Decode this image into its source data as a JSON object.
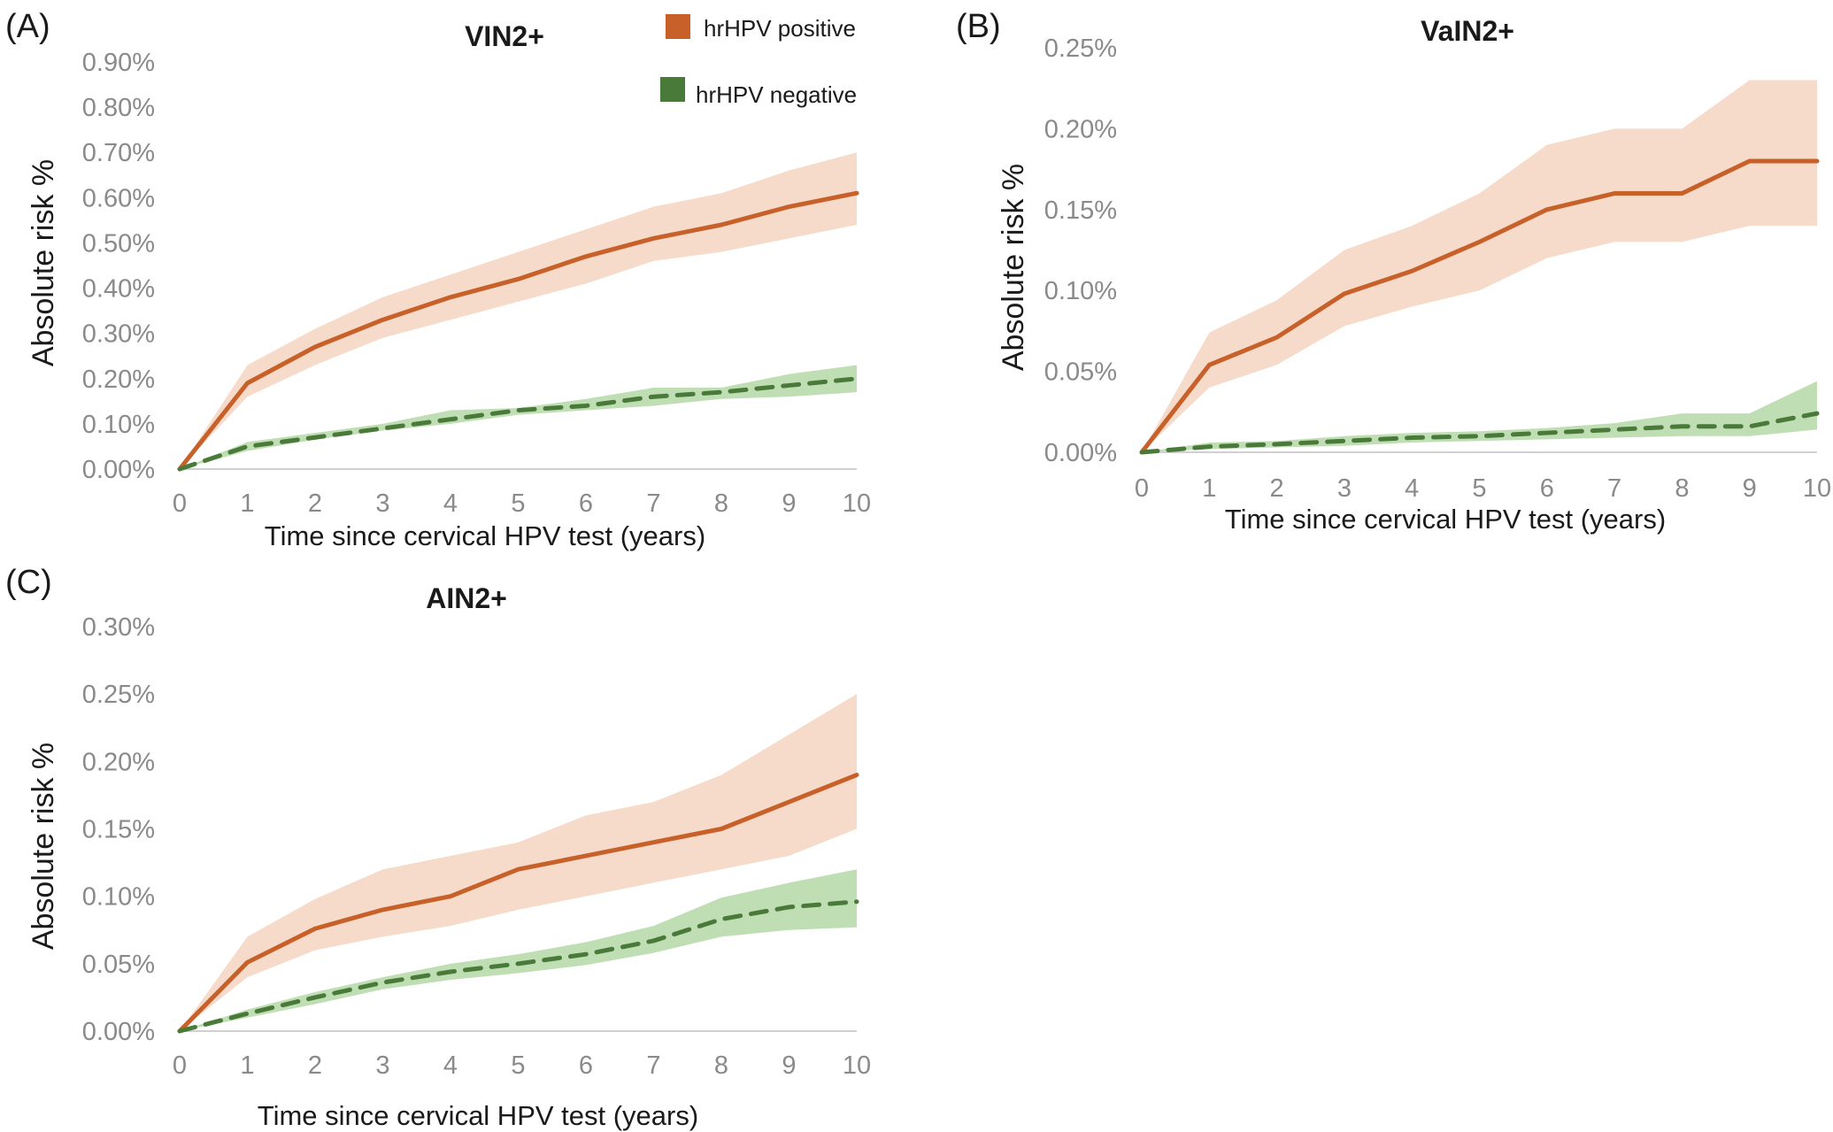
{
  "legend": {
    "items": [
      {
        "label": "hrHPV positive",
        "color": "#C8602A"
      },
      {
        "label": "hrHPV  negative",
        "color": "#4A7A3A"
      }
    ]
  },
  "colors": {
    "positive_line": "#C8602A",
    "positive_band": "#F5D5C2",
    "negative_line": "#4A7A3A",
    "negative_band": "#B5D8A6",
    "tick_text": "#8a8a8a"
  },
  "chart_data": [
    {
      "panel_label": "(A)",
      "type": "line",
      "title": "VIN2+",
      "xlabel": "Time since cervical HPV test (years)",
      "ylabel": "Absolute risk %",
      "x": [
        0,
        1,
        2,
        3,
        4,
        5,
        6,
        7,
        8,
        9,
        10
      ],
      "xlim": [
        0,
        10
      ],
      "ylim": [
        0,
        0.9
      ],
      "yticks": [
        0,
        0.1,
        0.2,
        0.3,
        0.4,
        0.5,
        0.6,
        0.7,
        0.8,
        0.9
      ],
      "ytick_labels": [
        "0.00%",
        "0.10%",
        "0.20%",
        "0.30%",
        "0.40%",
        "0.50%",
        "0.60%",
        "0.70%",
        "0.80%",
        "0.90%"
      ],
      "xtick_labels": [
        "0",
        "1",
        "2",
        "3",
        "4",
        "5",
        "6",
        "7",
        "8",
        "9",
        "10"
      ],
      "legend_position": "top-right",
      "series": [
        {
          "name": "hrHPV positive",
          "style": "solid",
          "values": [
            0,
            0.19,
            0.27,
            0.33,
            0.38,
            0.42,
            0.47,
            0.51,
            0.54,
            0.58,
            0.61
          ],
          "lower": [
            0,
            0.16,
            0.23,
            0.29,
            0.33,
            0.37,
            0.41,
            0.46,
            0.48,
            0.51,
            0.54
          ],
          "upper": [
            0,
            0.23,
            0.31,
            0.38,
            0.43,
            0.48,
            0.53,
            0.58,
            0.61,
            0.66,
            0.7
          ]
        },
        {
          "name": "hrHPV  negative",
          "style": "dashed",
          "values": [
            0,
            0.05,
            0.07,
            0.09,
            0.11,
            0.13,
            0.14,
            0.16,
            0.17,
            0.185,
            0.2
          ],
          "lower": [
            0,
            0.04,
            0.065,
            0.085,
            0.1,
            0.12,
            0.13,
            0.14,
            0.155,
            0.16,
            0.17
          ],
          "upper": [
            0,
            0.06,
            0.08,
            0.1,
            0.13,
            0.135,
            0.155,
            0.18,
            0.18,
            0.21,
            0.23
          ]
        }
      ]
    },
    {
      "panel_label": "(B)",
      "type": "line",
      "title": "VaIN2+",
      "xlabel": "Time since cervical HPV test (years)",
      "ylabel": "Absolute risk %",
      "x": [
        0,
        1,
        2,
        3,
        4,
        5,
        6,
        7,
        8,
        9,
        10
      ],
      "xlim": [
        0,
        10
      ],
      "ylim": [
        0,
        0.25
      ],
      "yticks": [
        0,
        0.05,
        0.1,
        0.15,
        0.2,
        0.25
      ],
      "ytick_labels": [
        "0.00%",
        "0.05%",
        "0.10%",
        "0.15%",
        "0.20%",
        "0.25%"
      ],
      "xtick_labels": [
        "0",
        "1",
        "2",
        "3",
        "4",
        "5",
        "6",
        "7",
        "8",
        "9",
        "10"
      ],
      "series": [
        {
          "name": "hrHPV positive",
          "style": "solid",
          "values": [
            0,
            0.054,
            0.071,
            0.098,
            0.112,
            0.13,
            0.15,
            0.16,
            0.16,
            0.18,
            0.18
          ],
          "lower": [
            0,
            0.04,
            0.054,
            0.078,
            0.09,
            0.1,
            0.12,
            0.13,
            0.13,
            0.14,
            0.14
          ],
          "upper": [
            0,
            0.074,
            0.094,
            0.125,
            0.14,
            0.16,
            0.19,
            0.2,
            0.2,
            0.23,
            0.23
          ]
        },
        {
          "name": "hrHPV  negative",
          "style": "dashed",
          "values": [
            0,
            0.0035,
            0.005,
            0.007,
            0.009,
            0.01,
            0.012,
            0.014,
            0.016,
            0.016,
            0.024
          ],
          "lower": [
            0,
            0.002,
            0.003,
            0.004,
            0.006,
            0.007,
            0.008,
            0.009,
            0.01,
            0.01,
            0.014
          ],
          "upper": [
            0,
            0.006,
            0.007,
            0.01,
            0.012,
            0.013,
            0.015,
            0.018,
            0.024,
            0.024,
            0.044
          ]
        }
      ]
    },
    {
      "panel_label": "(C)",
      "type": "line",
      "title": "AIN2+",
      "xlabel": "Time since cervical HPV test (years)",
      "ylabel": "Absolute risk %",
      "x": [
        0,
        1,
        2,
        3,
        4,
        5,
        6,
        7,
        8,
        9,
        10
      ],
      "xlim": [
        0,
        10
      ],
      "ylim": [
        0,
        0.3
      ],
      "yticks": [
        0,
        0.05,
        0.1,
        0.15,
        0.2,
        0.25,
        0.3
      ],
      "ytick_labels": [
        "0.00%",
        "0.05%",
        "0.10%",
        "0.15%",
        "0.20%",
        "0.25%",
        "0.30%"
      ],
      "xtick_labels": [
        "0",
        "1",
        "2",
        "3",
        "4",
        "5",
        "6",
        "7",
        "8",
        "9",
        "10"
      ],
      "series": [
        {
          "name": "hrHPV positive",
          "style": "solid",
          "values": [
            0,
            0.051,
            0.076,
            0.09,
            0.1,
            0.12,
            0.13,
            0.14,
            0.15,
            0.17,
            0.19
          ],
          "lower": [
            0,
            0.04,
            0.06,
            0.07,
            0.078,
            0.09,
            0.1,
            0.11,
            0.12,
            0.13,
            0.15
          ],
          "upper": [
            0,
            0.07,
            0.098,
            0.12,
            0.13,
            0.14,
            0.16,
            0.17,
            0.19,
            0.22,
            0.25
          ]
        },
        {
          "name": "hrHPV  negative",
          "style": "dashed",
          "values": [
            0,
            0.013,
            0.025,
            0.036,
            0.044,
            0.05,
            0.057,
            0.067,
            0.083,
            0.092,
            0.096
          ],
          "lower": [
            0,
            0.01,
            0.02,
            0.031,
            0.038,
            0.043,
            0.049,
            0.058,
            0.07,
            0.075,
            0.077
          ],
          "upper": [
            0,
            0.016,
            0.029,
            0.04,
            0.05,
            0.057,
            0.066,
            0.078,
            0.099,
            0.11,
            0.12
          ]
        }
      ]
    }
  ]
}
